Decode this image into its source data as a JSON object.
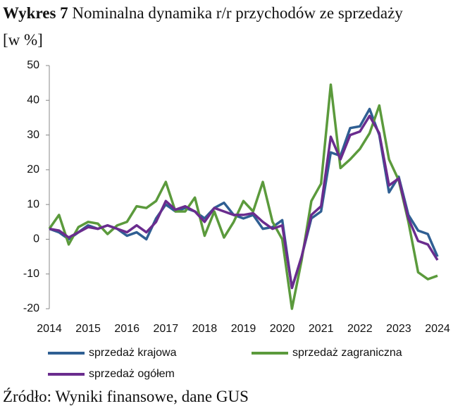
{
  "chart_data": {
    "type": "line",
    "title_label": "Wykres 7",
    "title": "Nominalna dynamika r/r przychodów ze sprzedaży [w %]",
    "source": "Źródło: Wyniki finansowe, dane GUS",
    "categories": [
      "2014",
      null,
      null,
      null,
      "2015",
      null,
      null,
      null,
      "2016",
      null,
      null,
      null,
      "2017",
      null,
      null,
      null,
      "2018",
      null,
      null,
      null,
      "2019",
      null,
      null,
      null,
      "2020",
      null,
      null,
      null,
      "2021",
      null,
      null,
      null,
      "2022",
      null,
      null,
      null,
      "2023",
      null,
      null,
      null,
      "2024"
    ],
    "series": [
      {
        "name": "sprzedaż krajowa",
        "color": "#2f5f93",
        "values": [
          3,
          2,
          0,
          2,
          4,
          3,
          4,
          3,
          1,
          2,
          0,
          6,
          10,
          8,
          9,
          8,
          6,
          9,
          10.5,
          7,
          6,
          7,
          3,
          3.5,
          5.5,
          -14,
          -5,
          6,
          8,
          25,
          24,
          32,
          32.5,
          37.5,
          30,
          13.5,
          18,
          7,
          2.5,
          1.5,
          -5
        ]
      },
      {
        "name": "sprzedaż zagraniczna",
        "color": "#5b9a3c",
        "values": [
          3,
          7,
          -1.5,
          3.5,
          5,
          4.5,
          1.5,
          4,
          5,
          9.5,
          9,
          11,
          16.5,
          8,
          8,
          12,
          1,
          8,
          0.5,
          5,
          11,
          8,
          16.5,
          5,
          0,
          -20,
          -6,
          11,
          16,
          44.5,
          20.5,
          23,
          26,
          30.5,
          38.5,
          23,
          17,
          5,
          -9.5,
          -11.5,
          -10.5
        ]
      },
      {
        "name": "sprzedaż ogółem",
        "color": "#6a2c8e",
        "values": [
          3,
          2.5,
          0.5,
          2,
          3.5,
          3,
          4,
          3,
          2,
          4,
          2,
          5,
          11,
          8.5,
          9.5,
          8,
          5,
          9,
          8,
          7,
          7,
          7.5,
          5,
          3,
          4,
          -14,
          -5,
          7,
          9.5,
          29.5,
          23,
          30,
          31,
          35.5,
          30.5,
          15.5,
          17.5,
          6,
          -0.5,
          -1.5,
          -6
        ]
      }
    ],
    "ylim": [
      -20,
      50
    ],
    "yticks": [
      -20,
      -10,
      0,
      10,
      20,
      30,
      40,
      50
    ]
  }
}
